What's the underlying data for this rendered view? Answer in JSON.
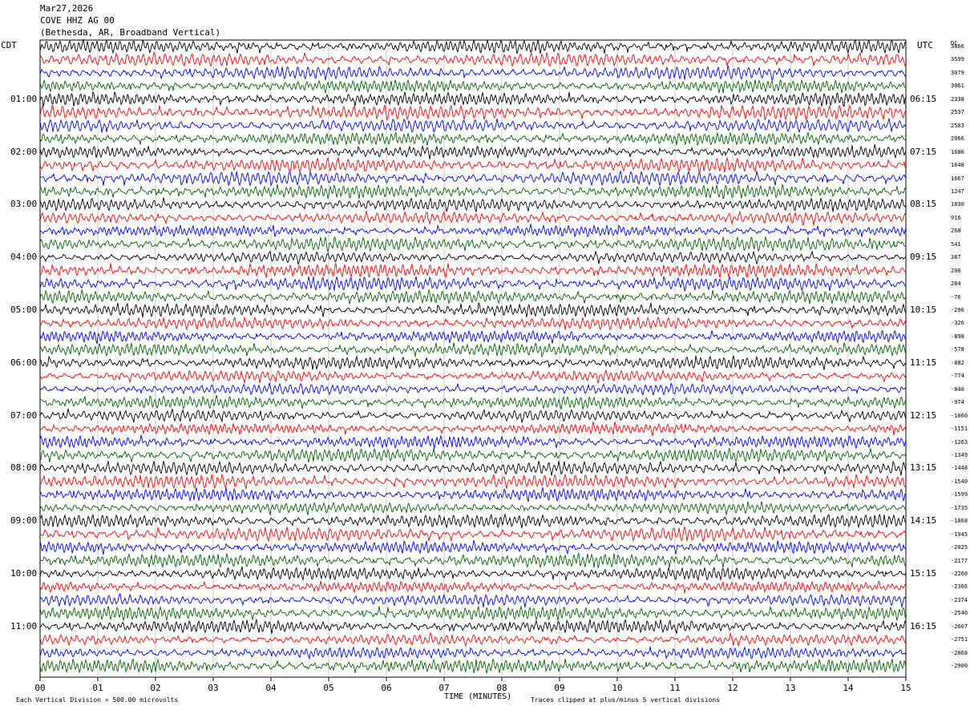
{
  "header": {
    "date": "Mar27,2026",
    "station": "COVE HHZ AG 00",
    "location": "(Bethesda, AR, Broadband Vertical)"
  },
  "left_tz": "CDT",
  "right_tz": "UTC",
  "dc_label": "DC",
  "footer": {
    "scale": "Each Vertical Division =  500.00 microvolts",
    "xlabel": "TIME (MINUTES)",
    "clip": "Traces clipped at plus/minus 5 vertical divisions"
  },
  "chart_data": {
    "type": "line",
    "xlabel": "TIME (MINUTES)",
    "xlim": [
      0,
      15
    ],
    "x_ticks": [
      "00",
      "01",
      "02",
      "03",
      "04",
      "05",
      "06",
      "07",
      "08",
      "09",
      "10",
      "11",
      "12",
      "13",
      "14",
      "15"
    ],
    "trace_count": 48,
    "trace_colors": [
      "#000000",
      "#ff0000",
      "#0000ff",
      "#006400"
    ],
    "left_hour_labels": [
      "01:00",
      "02:00",
      "03:00",
      "04:00",
      "05:00",
      "06:00",
      "07:00",
      "08:00",
      "09:00",
      "10:00",
      "11:00"
    ],
    "right_hour_labels": [
      "06:15",
      "07:15",
      "08:15",
      "09:15",
      "10:15",
      "11:15",
      "12:15",
      "13:15",
      "14:15",
      "15:15",
      "16:15"
    ],
    "dc_offsets": [
      "3866",
      "3599",
      "3079",
      "3061",
      "2338",
      "2537",
      "2503",
      "2066",
      "1686",
      "1648",
      "1667",
      "1247",
      "1830",
      "916",
      "268",
      "541",
      "387",
      "208",
      "264",
      "-76",
      "-296",
      "-326",
      "-898",
      "-578",
      "-882",
      "-774",
      "-840",
      "-974",
      "-1060",
      "-1151",
      "-1263",
      "-1349",
      "-1448",
      "-1540",
      "-1599",
      "-1735",
      "-1868",
      "-1945",
      "-2025",
      "-2177",
      "-2260",
      "-2366",
      "-2374",
      "-2540",
      "-2607",
      "-2751",
      "-2868",
      "-2900"
    ]
  }
}
